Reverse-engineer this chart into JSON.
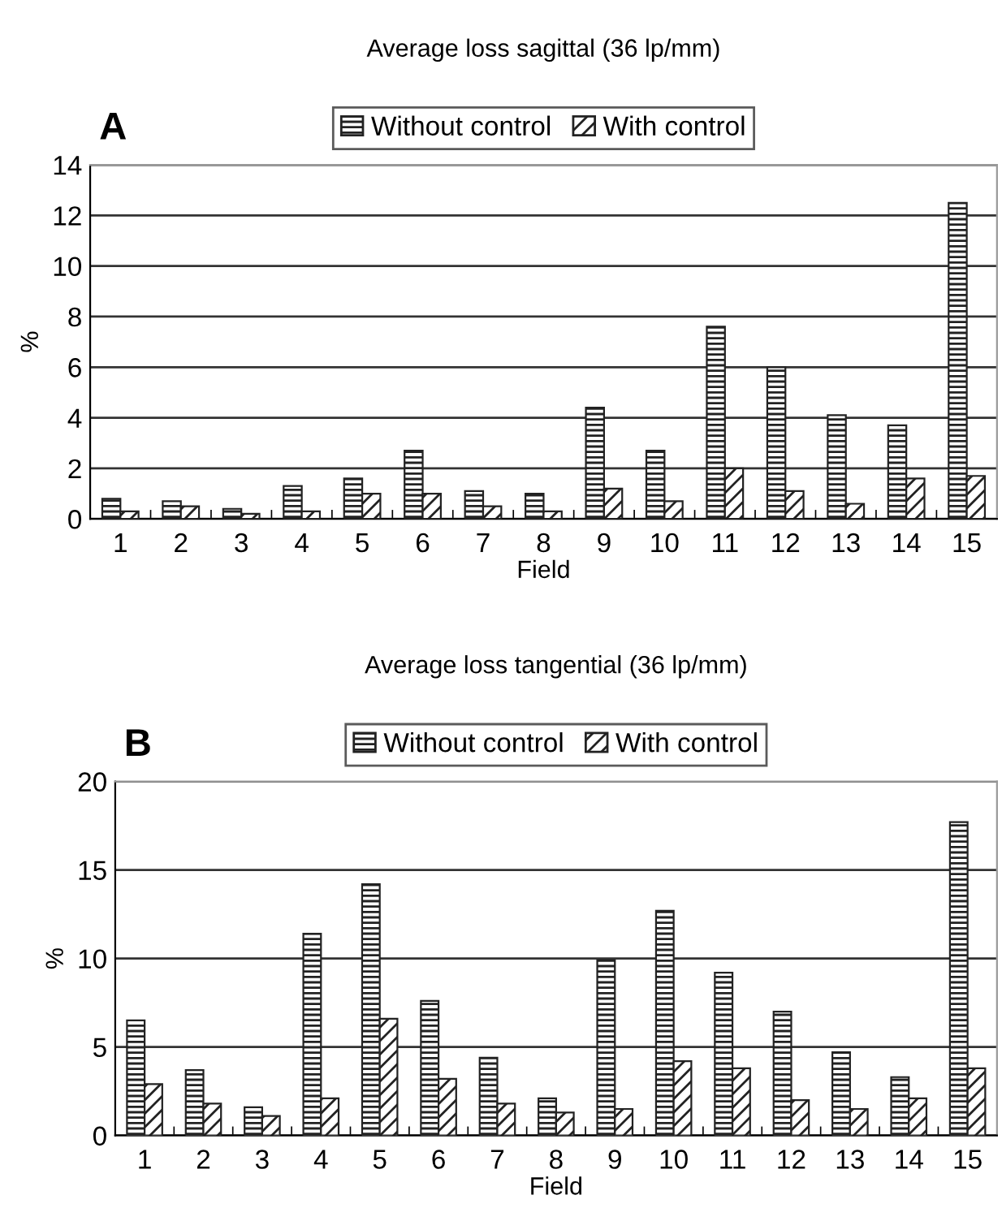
{
  "chart_data": [
    {
      "type": "bar",
      "title": "Average loss sagittal (36 lp/mm)",
      "xlabel": "Field",
      "ylabel": "%",
      "annotations": [
        "A"
      ],
      "categories": [
        "1",
        "2",
        "3",
        "4",
        "5",
        "6",
        "7",
        "8",
        "9",
        "10",
        "11",
        "12",
        "13",
        "14",
        "15"
      ],
      "series": [
        {
          "name": "Without control",
          "color": "#222222",
          "values": [
            0.8,
            0.7,
            0.4,
            1.3,
            1.6,
            2.7,
            1.1,
            1.0,
            4.4,
            2.7,
            7.6,
            6.0,
            4.1,
            3.7,
            12.5
          ]
        },
        {
          "name": "With control",
          "color": "#222222",
          "values": [
            0.3,
            0.5,
            0.2,
            0.3,
            1.0,
            1.0,
            0.5,
            0.3,
            1.2,
            0.7,
            2.0,
            1.1,
            0.6,
            1.6,
            1.7
          ]
        }
      ],
      "ylim": [
        0,
        14
      ],
      "yticks": [
        0,
        2,
        4,
        6,
        8,
        10,
        12,
        14
      ],
      "grid": "y",
      "legend": "top"
    },
    {
      "type": "bar",
      "title": "Average loss tangential (36 lp/mm)",
      "xlabel": "Field",
      "ylabel": "%",
      "annotations": [
        "B"
      ],
      "categories": [
        "1",
        "2",
        "3",
        "4",
        "5",
        "6",
        "7",
        "8",
        "9",
        "10",
        "11",
        "12",
        "13",
        "14",
        "15"
      ],
      "series": [
        {
          "name": "Without control",
          "color": "#222222",
          "values": [
            6.5,
            3.7,
            1.6,
            11.4,
            14.2,
            7.6,
            4.4,
            2.1,
            9.9,
            12.7,
            9.2,
            7.0,
            4.7,
            3.3,
            17.7
          ]
        },
        {
          "name": "With control",
          "color": "#222222",
          "values": [
            2.9,
            1.8,
            1.1,
            2.1,
            6.6,
            3.2,
            1.8,
            1.3,
            1.5,
            4.2,
            3.8,
            2.0,
            1.5,
            2.1,
            3.8
          ]
        }
      ],
      "ylim": [
        0,
        20
      ],
      "yticks": [
        0,
        5,
        10,
        15,
        20
      ],
      "grid": "y",
      "legend": "top"
    }
  ]
}
